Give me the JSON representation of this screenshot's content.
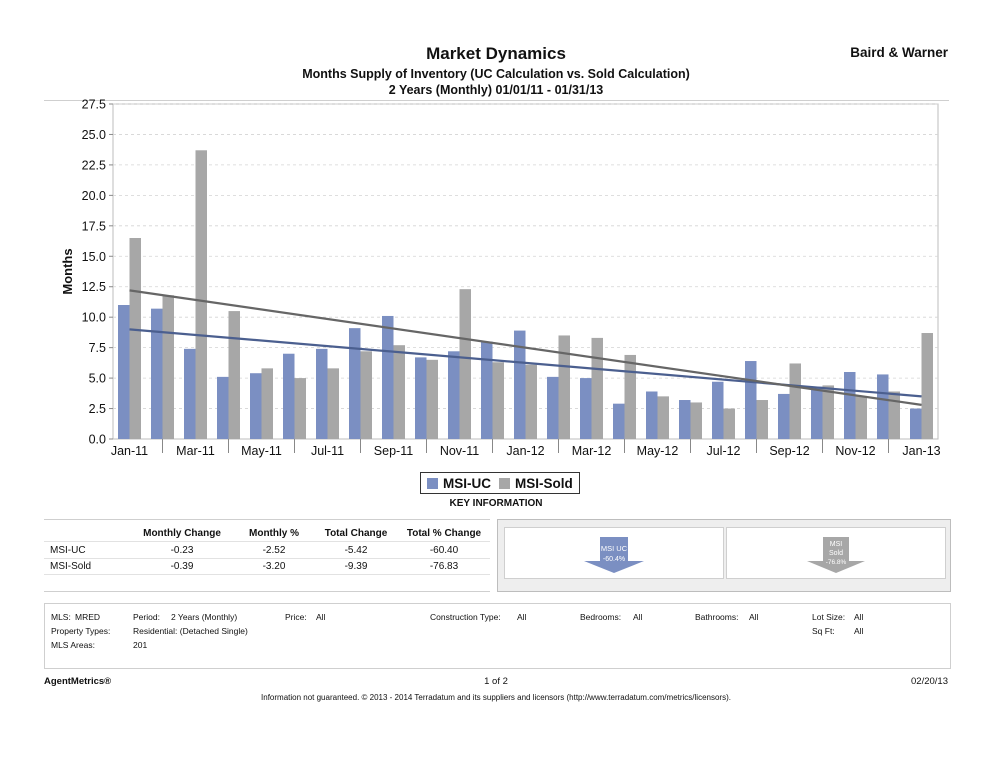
{
  "header": {
    "title": "Market Dynamics",
    "subtitle": "Months Supply of Inventory (UC Calculation vs. Sold Calculation)",
    "period_line": "2 Years (Monthly) 01/01/11 - 01/31/13",
    "brand": "Baird & Warner"
  },
  "colors": {
    "uc": "#7b8fc2",
    "sold": "#a7a7a7",
    "uc_trend": "#4b5f8f",
    "sold_trend": "#666666"
  },
  "chart_data": {
    "type": "bar",
    "ylabel": "Months",
    "ylim": [
      0,
      27.5
    ],
    "yticks": [
      "0.0",
      "2.5",
      "5.0",
      "7.5",
      "10.0",
      "12.5",
      "15.0",
      "17.5",
      "20.0",
      "22.5",
      "25.0",
      "27.5"
    ],
    "xtick_labels": [
      "Jan-11",
      "Mar-11",
      "May-11",
      "Jul-11",
      "Sep-11",
      "Nov-11",
      "Jan-12",
      "Mar-12",
      "May-12",
      "Jul-12",
      "Sep-12",
      "Nov-12",
      "Jan-13"
    ],
    "categories": [
      "Jan-11",
      "Feb-11",
      "Mar-11",
      "Apr-11",
      "May-11",
      "Jun-11",
      "Jul-11",
      "Aug-11",
      "Sep-11",
      "Oct-11",
      "Nov-11",
      "Dec-11",
      "Jan-12",
      "Feb-12",
      "Mar-12",
      "Apr-12",
      "May-12",
      "Jun-12",
      "Jul-12",
      "Aug-12",
      "Sep-12",
      "Oct-12",
      "Nov-12",
      "Dec-12",
      "Jan-13"
    ],
    "series": [
      {
        "name": "MSI-UC",
        "values": [
          11.0,
          10.7,
          7.4,
          5.1,
          5.4,
          7.0,
          7.4,
          9.1,
          10.1,
          6.7,
          7.2,
          8.0,
          8.9,
          5.1,
          5.0,
          2.9,
          3.9,
          3.2,
          4.7,
          6.4,
          3.7,
          4.3,
          5.5,
          5.3,
          2.5
        ]
      },
      {
        "name": "MSI-Sold",
        "values": [
          16.5,
          11.8,
          23.7,
          10.5,
          5.8,
          5.0,
          5.8,
          7.2,
          7.7,
          6.5,
          12.3,
          6.3,
          6.1,
          8.5,
          8.3,
          6.9,
          3.5,
          3.0,
          2.5,
          3.2,
          6.2,
          4.4,
          3.5,
          3.9,
          8.7
        ]
      }
    ],
    "trendlines": [
      {
        "name": "MSI-UC trend",
        "start": 9.0,
        "end": 3.5
      },
      {
        "name": "MSI-Sold trend",
        "start": 12.2,
        "end": 2.8
      }
    ],
    "legend": [
      "MSI-UC",
      "MSI-Sold"
    ]
  },
  "key_information": {
    "title": "KEY INFORMATION",
    "columns": [
      "Monthly Change",
      "Monthly %",
      "Total Change",
      "Total % Change"
    ],
    "rows": [
      {
        "label": "MSI-UC",
        "values": [
          "-0.23",
          "-2.52",
          "-5.42",
          "-60.40"
        ]
      },
      {
        "label": "MSI-Sold",
        "values": [
          "-0.39",
          "-3.20",
          "-9.39",
          "-76.83"
        ]
      }
    ],
    "arrows": [
      {
        "line1": "MSI UC",
        "line2": "",
        "pct": "-60.4%"
      },
      {
        "line1": "MSI",
        "line2": "Sold",
        "pct": "-76.8%"
      }
    ]
  },
  "meta": {
    "mls_label": "MLS:",
    "mls": "MRED",
    "period_label": "Period:",
    "period": "2 Years (Monthly)",
    "price_label": "Price:",
    "price": "All",
    "construction_label": "Construction Type:",
    "construction": "All",
    "bedrooms_label": "Bedrooms:",
    "bedrooms": "All",
    "bathrooms_label": "Bathrooms:",
    "bathrooms": "All",
    "lot_size_label": "Lot Size:",
    "lot_size": "All",
    "property_types_label": "Property Types:",
    "property_types": "Residential: (Detached Single)",
    "sqft_label": "Sq Ft:",
    "sqft": "All",
    "mls_areas_label": "MLS Areas:",
    "mls_areas": "201"
  },
  "footer": {
    "product": "AgentMetrics®",
    "page": "1 of 2",
    "date": "02/20/13",
    "disclaimer": "Information not guaranteed.  © 2013 - 2014 Terradatum and its suppliers and licensors (http://www.terradatum.com/metrics/licensors)."
  }
}
